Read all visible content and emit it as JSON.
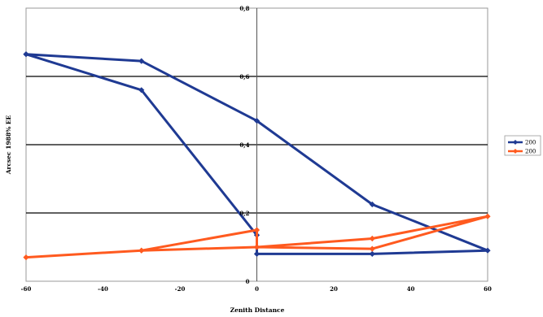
{
  "chart_data": {
    "type": "line",
    "title": "",
    "xlabel": "Zenith Distance",
    "ylabel": "Arcsec 1988% EE",
    "xlim": [
      -60,
      60
    ],
    "ylim": [
      0,
      0.8
    ],
    "x_ticks": [
      "-60",
      "-40",
      "-20",
      "0",
      "20",
      "40",
      "60"
    ],
    "y_ticks": [
      "0",
      "0,2",
      "0,4",
      "0,6",
      "0,8"
    ],
    "grid": "horizontal major lines",
    "legend_position": "right",
    "series": [
      {
        "name": "200",
        "color": "#1f3a93",
        "points": [
          [
            -60,
            0.665
          ],
          [
            -30,
            0.645
          ],
          [
            0,
            0.47
          ],
          [
            30,
            0.225
          ],
          [
            60,
            0.09
          ],
          [
            30,
            0.08
          ],
          [
            0,
            0.08
          ],
          [
            0,
            0.135
          ],
          [
            -30,
            0.56
          ],
          [
            -60,
            0.665
          ]
        ]
      },
      {
        "name": "200",
        "color": "#ff5a1f",
        "points": [
          [
            -60,
            0.07
          ],
          [
            -30,
            0.09
          ],
          [
            0,
            0.15
          ],
          [
            0,
            0.1
          ],
          [
            30,
            0.125
          ],
          [
            60,
            0.19
          ],
          [
            30,
            0.095
          ],
          [
            0,
            0.1
          ],
          [
            -30,
            0.09
          ]
        ]
      }
    ]
  }
}
